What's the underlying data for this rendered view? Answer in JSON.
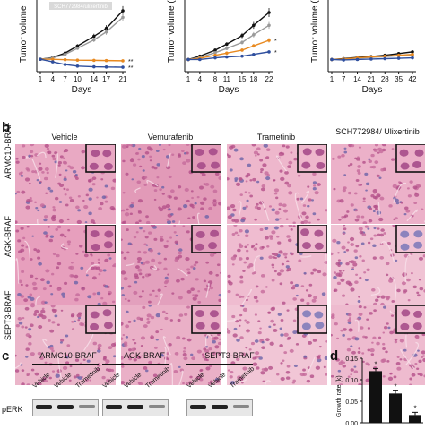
{
  "panels": {
    "b": "b",
    "c": "c",
    "d": "d"
  },
  "colors": {
    "black": "#111111",
    "grey": "#9a9a9a",
    "orange": "#e8891f",
    "blue": "#2f4f9e",
    "stain_bg": "#e8a7bf",
    "nuclei": "#b6578c"
  },
  "charts": {
    "a1": {
      "ylabel": "Tumor volume",
      "xlabel": "Days",
      "ticks": [
        "1",
        "4",
        "7",
        "10",
        "14",
        "17",
        "21"
      ],
      "banner": "SCH772984/ulixertinib",
      "sig": [
        "**",
        "**"
      ]
    },
    "a2": {
      "ylabel": "Tumor volume (mm",
      "xlabel": "Days",
      "ticks": [
        "1",
        "4",
        "8",
        "11",
        "15",
        "18",
        "22"
      ],
      "sig": [
        "*",
        "*"
      ]
    },
    "a3": {
      "ylabel": "Tumor volume (m",
      "xlabel": "Days",
      "ticks": [
        "1",
        "7",
        "14",
        "21",
        "28",
        "35",
        "42"
      ]
    }
  },
  "chart_data": [
    {
      "type": "line",
      "xlabel": "Days",
      "x": [
        1,
        4,
        7,
        10,
        14,
        17,
        21
      ],
      "series": [
        {
          "values": [
            200,
            240,
            340,
            500,
            720,
            900,
            1300
          ],
          "color": "#111111"
        },
        {
          "values": [
            200,
            230,
            310,
            450,
            640,
            820,
            1150
          ],
          "color": "#9a9a9a"
        },
        {
          "values": [
            200,
            200,
            190,
            180,
            175,
            170,
            165
          ],
          "color": "#e8891f"
        },
        {
          "values": [
            200,
            140,
            80,
            45,
            30,
            25,
            20
          ],
          "color": "#2f4f9e"
        }
      ]
    },
    {
      "type": "line",
      "xlabel": "Days",
      "x": [
        1,
        4,
        8,
        11,
        15,
        18,
        22
      ],
      "series": [
        {
          "values": [
            200,
            280,
            420,
            560,
            760,
            1000,
            1300
          ],
          "color": "#111111"
        },
        {
          "values": [
            200,
            250,
            360,
            460,
            600,
            780,
            1000
          ],
          "color": "#9a9a9a"
        },
        {
          "values": [
            200,
            230,
            300,
            350,
            420,
            520,
            650
          ],
          "color": "#e8891f"
        },
        {
          "values": [
            200,
            200,
            240,
            260,
            280,
            320,
            380
          ],
          "color": "#2f4f9e"
        }
      ]
    },
    {
      "type": "line",
      "xlabel": "Days",
      "x": [
        1,
        7,
        14,
        21,
        28,
        35,
        42
      ],
      "series": [
        {
          "values": [
            200,
            220,
            250,
            270,
            300,
            340,
            380
          ],
          "color": "#111111"
        },
        {
          "values": [
            200,
            210,
            230,
            250,
            270,
            290,
            300
          ],
          "color": "#9a9a9a"
        },
        {
          "values": [
            200,
            210,
            240,
            260,
            280,
            300,
            320
          ],
          "color": "#e8891f"
        },
        {
          "values": [
            200,
            190,
            200,
            210,
            220,
            230,
            240
          ],
          "color": "#2f4f9e"
        }
      ]
    },
    {
      "type": "bar",
      "ylabel": "Growth rate (k)",
      "yticks": [
        "0.00",
        "0.05",
        "0.10",
        "0.15"
      ],
      "ylim": [
        0,
        0.15
      ],
      "values": [
        0.12,
        0.068,
        0.018
      ],
      "sig": [
        "*",
        "*",
        "*"
      ]
    }
  ],
  "treatments": [
    "Vehicle",
    "Vemurafenib",
    "Trametinib",
    "SCH772984/ Ulixertinib"
  ],
  "rows": [
    "ARMC10-BRAF",
    "AGK-BRAF",
    "SEPT3-BRAF"
  ],
  "blot": {
    "row_label": "pERK",
    "groups": [
      "ARMC10-BRAF",
      "AGK-BRAF",
      "SEPT3-BRAF"
    ],
    "lanes": [
      "Vehicle",
      "Vehicle",
      "Trametinib"
    ]
  }
}
